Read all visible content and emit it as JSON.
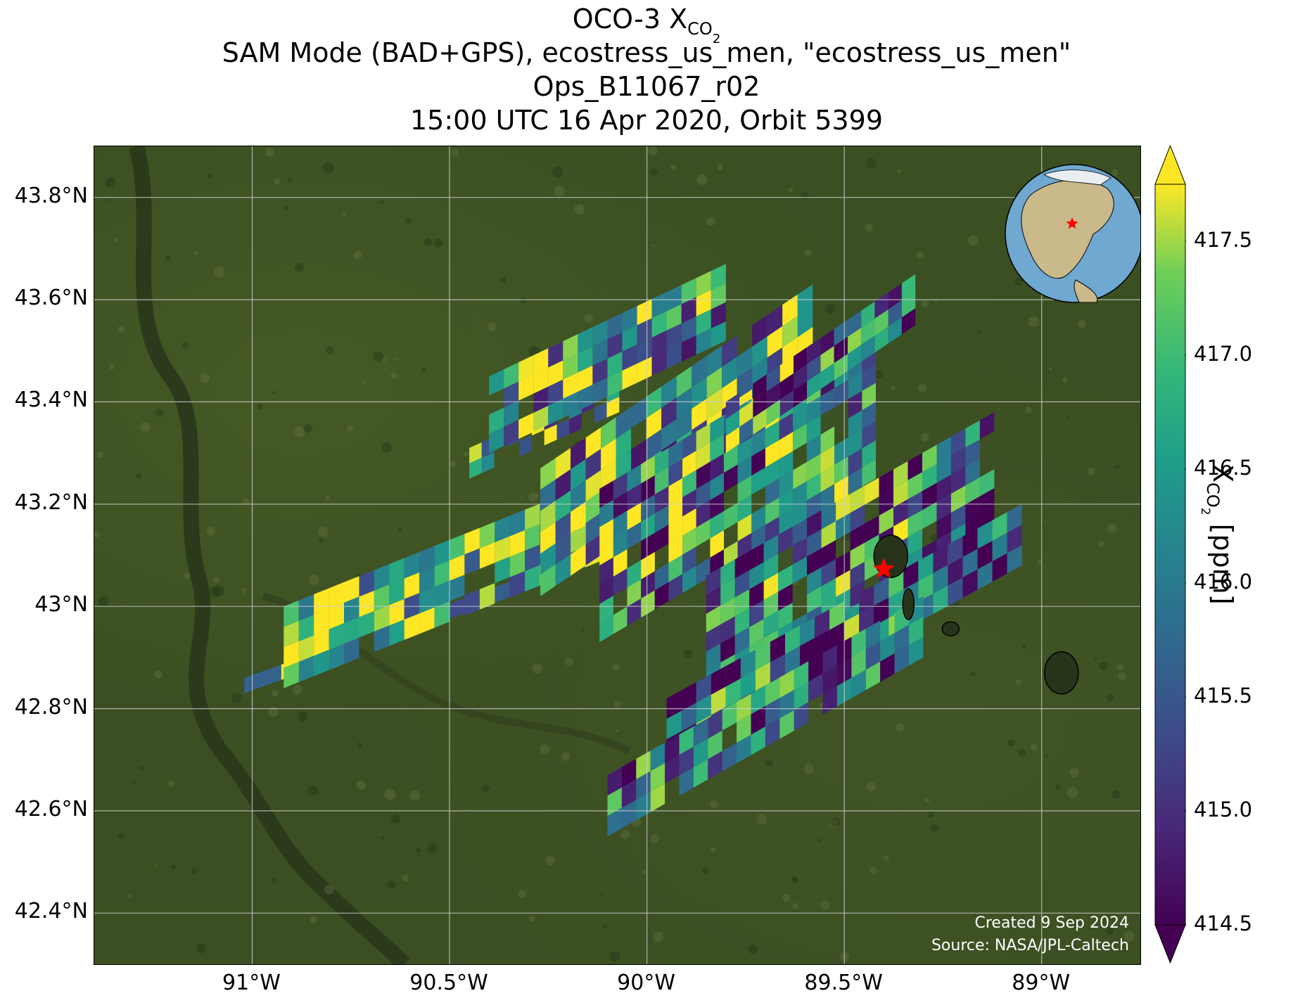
{
  "title": {
    "line1_main": "OCO-3 X",
    "line1_sub": "CO",
    "line1_subsub": "2",
    "line2": "SAM Mode (BAD+GPS), ecostress_us_men, \"ecostress_us_men\"",
    "line3": "Ops_B11067_r02",
    "line4": "15:00 UTC 16 Apr 2020, Orbit 5399"
  },
  "map": {
    "lon_range": [
      -91.4,
      -88.75
    ],
    "lat_range": [
      42.3,
      43.9
    ],
    "lat_ticks": [
      {
        "value": 43.8,
        "label": "43.8°N"
      },
      {
        "value": 43.6,
        "label": "43.6°N"
      },
      {
        "value": 43.4,
        "label": "43.4°N"
      },
      {
        "value": 43.2,
        "label": "43.2°N"
      },
      {
        "value": 43.0,
        "label": "43°N"
      },
      {
        "value": 42.8,
        "label": "42.8°N"
      },
      {
        "value": 42.6,
        "label": "42.6°N"
      },
      {
        "value": 42.4,
        "label": "42.4°N"
      }
    ],
    "lon_ticks": [
      {
        "value": -91.0,
        "label": "91°W"
      },
      {
        "value": -90.5,
        "label": "90.5°W"
      },
      {
        "value": -90.0,
        "label": "90°W"
      },
      {
        "value": -89.5,
        "label": "89.5°W"
      },
      {
        "value": -89.0,
        "label": "89°W"
      }
    ],
    "target": {
      "lon": -89.4,
      "lat": 43.073,
      "marker": "red-star"
    },
    "credit_line1": "Created 9 Sep 2024",
    "credit_line2": "Source: NASA/JPL-Caltech",
    "inset": "globe-north-america",
    "colors": {
      "land": "#3b4f22",
      "grid": "#d0d0d0",
      "star": "#ff0000"
    }
  },
  "colorbar": {
    "label_main": "X",
    "label_sub": "CO",
    "label_subsub": "2",
    "label_units": " [ppm]",
    "min": 414.5,
    "max": 417.75,
    "extend": "both",
    "colormap": "viridis",
    "ticks": [
      "417.5",
      "417.0",
      "416.5",
      "416.0",
      "415.5",
      "415.0",
      "414.5"
    ],
    "tick_values": [
      417.5,
      417.0,
      416.5,
      416.0,
      415.5,
      415.0,
      414.5
    ]
  }
}
